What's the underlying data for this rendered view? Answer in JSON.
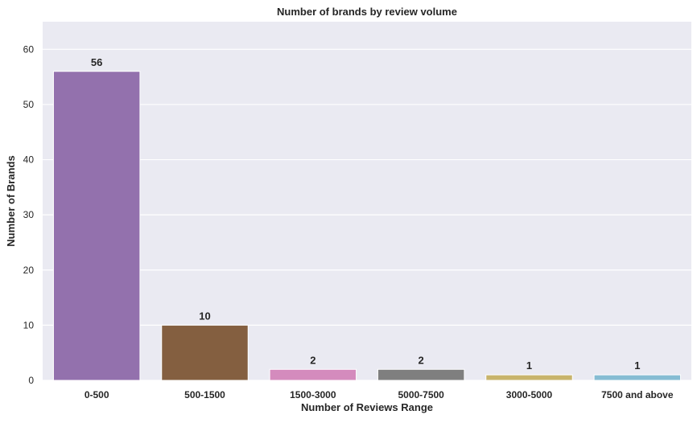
{
  "chart_data": {
    "type": "bar",
    "title": "Number of brands by review volume",
    "xlabel": "Number of Reviews Range",
    "ylabel": "Number of Brands",
    "categories": [
      "0-500",
      "500-1500",
      "1500-3000",
      "5000-7500",
      "3000-5000",
      "7500 and above"
    ],
    "values": [
      56,
      10,
      2,
      2,
      1,
      1
    ],
    "value_labels": [
      "56",
      "10",
      "2",
      "2",
      "1",
      "1"
    ],
    "colors": [
      "#9371ad",
      "#845f40",
      "#d48bbd",
      "#7f7f7f",
      "#c8b46c",
      "#86bcd3"
    ],
    "ylim": [
      0,
      65
    ],
    "yticks": [
      0,
      10,
      20,
      30,
      40,
      50,
      60
    ],
    "ytick_labels": [
      "0",
      "10",
      "20",
      "30",
      "40",
      "50",
      "60"
    ],
    "grid": true,
    "background_color": "#eaeaf2",
    "grid_color": "#ffffff"
  }
}
